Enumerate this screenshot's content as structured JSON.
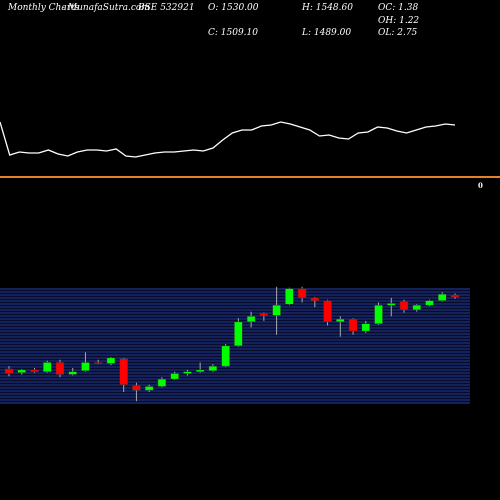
{
  "header": {
    "left": "Monthly Charts",
    "site": "- MunafaSutra.com",
    "symbol": "BSE 532921",
    "open": "O: 1530.00",
    "close": "C: 1509.10",
    "high": "H: 1548.60",
    "low": "L: 1489.00",
    "oc": "OC: 1.38",
    "oh": "OH: 1.22",
    "ol": "OL: 2.75"
  },
  "chart_data": [
    {
      "type": "line",
      "color": "#ffffff",
      "ylim": [
        0,
        100
      ],
      "zero_value": 0,
      "zero_color": "#e8802a",
      "values": [
        72.5,
        31.25,
        35,
        33.75,
        33.75,
        37.5,
        32.5,
        30,
        35,
        37.5,
        37.5,
        36.25,
        38.75,
        30,
        28.75,
        31.25,
        33.75,
        35,
        35,
        36.25,
        37.5,
        36.25,
        40,
        50,
        58.75,
        62.5,
        62.5,
        67.5,
        68.75,
        72.5,
        70,
        66.25,
        62.5,
        55,
        56.25,
        52.5,
        51.25,
        58.75,
        60,
        66.25,
        65,
        61.25,
        58.75,
        62.5,
        66.25,
        67.5,
        70,
        68.75
      ]
    },
    {
      "type": "candlestick",
      "ylim": [
        350,
        1650
      ],
      "up_color": "#00ff00",
      "down_color": "#ff0000",
      "wick_color": "#aaaaaa",
      "open": [
        730,
        690,
        720,
        700,
        800,
        670,
        710,
        800,
        790,
        840,
        550,
        500,
        540,
        620,
        680,
        700,
        710,
        760,
        980,
        1240,
        1330,
        1310,
        1430,
        1600,
        1500,
        1470,
        1240,
        1270,
        1140,
        1220,
        1420,
        1460,
        1370,
        1420,
        1470,
        1530
      ],
      "high": [
        760,
        730,
        740,
        820,
        830,
        740,
        910,
        830,
        860,
        850,
        580,
        560,
        640,
        700,
        720,
        800,
        780,
        1000,
        1280,
        1350,
        1340,
        1620,
        1610,
        1620,
        1510,
        1480,
        1300,
        1280,
        1250,
        1450,
        1500,
        1480,
        1430,
        1480,
        1560,
        1548.6
      ],
      "low": [
        650,
        670,
        690,
        690,
        640,
        660,
        700,
        780,
        770,
        480,
        380,
        480,
        530,
        610,
        660,
        690,
        700,
        750,
        970,
        1180,
        1250,
        1100,
        1420,
        1450,
        1400,
        1200,
        1080,
        1100,
        1120,
        1210,
        1300,
        1340,
        1350,
        1410,
        1460,
        1489
      ],
      "close": [
        680,
        720,
        700,
        800,
        670,
        700,
        800,
        790,
        850,
        560,
        500,
        540,
        620,
        680,
        700,
        720,
        760,
        980,
        1240,
        1300,
        1310,
        1420,
        1600,
        1500,
        1470,
        1240,
        1270,
        1140,
        1220,
        1420,
        1440,
        1370,
        1420,
        1470,
        1540,
        1509.1
      ]
    }
  ]
}
